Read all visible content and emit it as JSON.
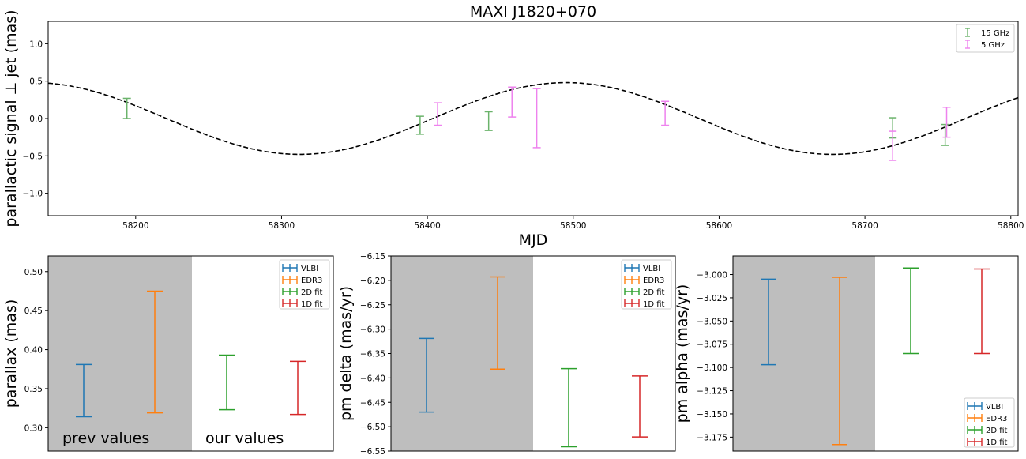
{
  "chart_data": [
    {
      "type": "scatter",
      "title": "MAXI J1820+070",
      "xlabel": "MJD",
      "ylabel": "parallactic signal ⊥ jet (mas)",
      "xlim": [
        58140,
        58805
      ],
      "ylim": [
        -1.3,
        1.3
      ],
      "xticks": [
        58200,
        58300,
        58400,
        58500,
        58600,
        58700,
        58800
      ],
      "yticks": [
        -1.0,
        -0.5,
        0.0,
        0.5,
        1.0
      ],
      "legend_position": "top-right",
      "model_curve": {
        "style": "dashed",
        "color": "#000000",
        "amplitude": 0.48,
        "period_days": 365.25,
        "peak_mjd": 58495
      },
      "series": [
        {
          "name": "15 GHz",
          "color": "#6bb36b",
          "points": [
            {
              "x": 58194,
              "low": 0.0,
              "high": 0.27
            },
            {
              "x": 58395,
              "low": -0.21,
              "high": 0.03
            },
            {
              "x": 58442,
              "low": -0.16,
              "high": 0.09
            },
            {
              "x": 58719,
              "low": -0.26,
              "high": 0.01
            },
            {
              "x": 58755,
              "low": -0.36,
              "high": -0.08
            }
          ]
        },
        {
          "name": "5 GHz",
          "color": "#ee82ee",
          "points": [
            {
              "x": 58407,
              "low": -0.09,
              "high": 0.21
            },
            {
              "x": 58458,
              "low": 0.02,
              "high": 0.42
            },
            {
              "x": 58475,
              "low": -0.39,
              "high": 0.4
            },
            {
              "x": 58563,
              "low": -0.09,
              "high": 0.23
            },
            {
              "x": 58719,
              "low": -0.56,
              "high": -0.17
            },
            {
              "x": 58756,
              "low": -0.25,
              "high": 0.15
            }
          ]
        }
      ]
    },
    {
      "type": "scatter",
      "ylabel": "parallax (mas)",
      "ylim": [
        0.27,
        0.52
      ],
      "yticks": [
        0.3,
        0.35,
        0.4,
        0.45,
        0.5
      ],
      "legend_position": "top-right",
      "annotations": [
        "prev values",
        "our values"
      ],
      "series": [
        {
          "name": "VLBI",
          "color": "#1f77b4",
          "low": 0.314,
          "high": 0.381
        },
        {
          "name": "EDR3",
          "color": "#ff7f0e",
          "low": 0.319,
          "high": 0.475
        },
        {
          "name": "2D fit",
          "color": "#2ca02c",
          "low": 0.323,
          "high": 0.393
        },
        {
          "name": "1D fit",
          "color": "#d62728",
          "low": 0.317,
          "high": 0.385
        }
      ]
    },
    {
      "type": "scatter",
      "ylabel": "pm delta (mas/yr)",
      "ylim": [
        -6.55,
        -6.15
      ],
      "yticks": [
        -6.55,
        -6.5,
        -6.45,
        -6.4,
        -6.35,
        -6.3,
        -6.25,
        -6.2,
        -6.15
      ],
      "legend_position": "top-right",
      "series": [
        {
          "name": "VLBI",
          "color": "#1f77b4",
          "low": -6.47,
          "high": -6.319
        },
        {
          "name": "EDR3",
          "color": "#ff7f0e",
          "low": -6.382,
          "high": -6.193
        },
        {
          "name": "2D fit",
          "color": "#2ca02c",
          "low": -6.541,
          "high": -6.381
        },
        {
          "name": "1D fit",
          "color": "#d62728",
          "low": -6.521,
          "high": -6.396
        }
      ]
    },
    {
      "type": "scatter",
      "ylabel": "pm alpha (mas/yr)",
      "ylim": [
        -3.19,
        -2.98
      ],
      "yticks": [
        -3.175,
        -3.15,
        -3.125,
        -3.1,
        -3.075,
        -3.05,
        -3.025,
        -3.0
      ],
      "legend_position": "bottom-right",
      "series": [
        {
          "name": "VLBI",
          "color": "#1f77b4",
          "low": -3.097,
          "high": -3.005
        },
        {
          "name": "EDR3",
          "color": "#ff7f0e",
          "low": -3.183,
          "high": -3.003
        },
        {
          "name": "2D fit",
          "color": "#2ca02c",
          "low": -3.085,
          "high": -2.993
        },
        {
          "name": "1D fit",
          "color": "#d62728",
          "low": -3.085,
          "high": -2.994
        }
      ]
    }
  ]
}
